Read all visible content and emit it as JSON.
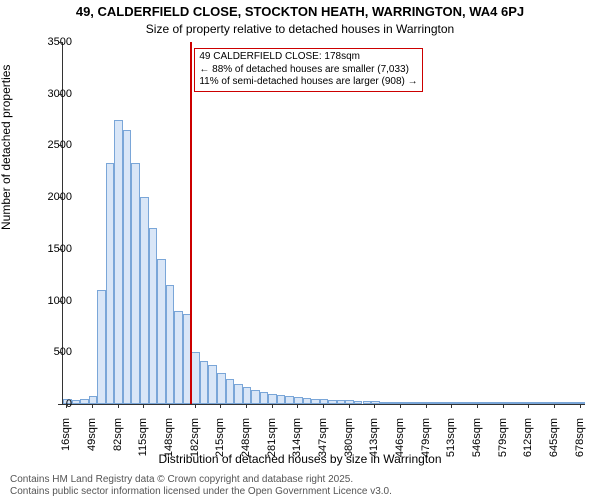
{
  "chart": {
    "type": "histogram",
    "title1": "49, CALDERFIELD CLOSE, STOCKTON HEATH, WARRINGTON, WA4 6PJ",
    "title2": "Size of property relative to detached houses in Warrington",
    "title_fontsize": 13,
    "subtitle_fontsize": 12,
    "ylabel": "Number of detached properties",
    "xlabel": "Distribution of detached houses by size in Warrington",
    "axis_label_fontsize": 12,
    "tick_fontsize": 11,
    "ylim": [
      0,
      3500
    ],
    "ytick_step": 500,
    "background_color": "#ffffff",
    "bar_fill": "#d9e6f7",
    "bar_stroke": "#7aa6d8",
    "axis_color": "#333333",
    "num_bars": 61,
    "xticks": [
      {
        "pos": 0,
        "label": "16sqm"
      },
      {
        "pos": 3,
        "label": "49sqm"
      },
      {
        "pos": 6,
        "label": "82sqm"
      },
      {
        "pos": 9,
        "label": "115sqm"
      },
      {
        "pos": 12,
        "label": "148sqm"
      },
      {
        "pos": 15,
        "label": "182sqm"
      },
      {
        "pos": 18,
        "label": "215sqm"
      },
      {
        "pos": 21,
        "label": "248sqm"
      },
      {
        "pos": 24,
        "label": "281sqm"
      },
      {
        "pos": 27,
        "label": "314sqm"
      },
      {
        "pos": 30,
        "label": "347sqm"
      },
      {
        "pos": 33,
        "label": "380sqm"
      },
      {
        "pos": 36,
        "label": "413sqm"
      },
      {
        "pos": 39,
        "label": "446sqm"
      },
      {
        "pos": 42,
        "label": "479sqm"
      },
      {
        "pos": 45,
        "label": "513sqm"
      },
      {
        "pos": 48,
        "label": "546sqm"
      },
      {
        "pos": 51,
        "label": "579sqm"
      },
      {
        "pos": 54,
        "label": "612sqm"
      },
      {
        "pos": 57,
        "label": "645sqm"
      },
      {
        "pos": 60,
        "label": "678sqm"
      }
    ],
    "values": [
      50,
      40,
      50,
      80,
      1100,
      2330,
      2750,
      2650,
      2330,
      2000,
      1700,
      1400,
      1150,
      900,
      870,
      500,
      420,
      380,
      300,
      240,
      190,
      160,
      140,
      120,
      100,
      90,
      80,
      70,
      60,
      50,
      45,
      40,
      40,
      35,
      30,
      25,
      25,
      20,
      20,
      15,
      15,
      12,
      12,
      10,
      10,
      8,
      8,
      6,
      6,
      5,
      5,
      4,
      4,
      3,
      3,
      2,
      2,
      2,
      1,
      1,
      1
    ],
    "reference_line": {
      "bar_index": 15,
      "color": "#cc0000"
    },
    "annotation": {
      "line1": "49 CALDERFIELD CLOSE: 178sqm",
      "line2": "← 88% of detached houses are smaller (7,033)",
      "line3": "11% of semi-detached houses are larger (908) →",
      "border_color": "#cc0000",
      "fontsize": 10
    }
  },
  "footer": {
    "line1": "Contains HM Land Registry data © Crown copyright and database right 2025.",
    "line2": "Contains public sector information licensed under the Open Government Licence v3.0.",
    "fontsize": 10
  }
}
